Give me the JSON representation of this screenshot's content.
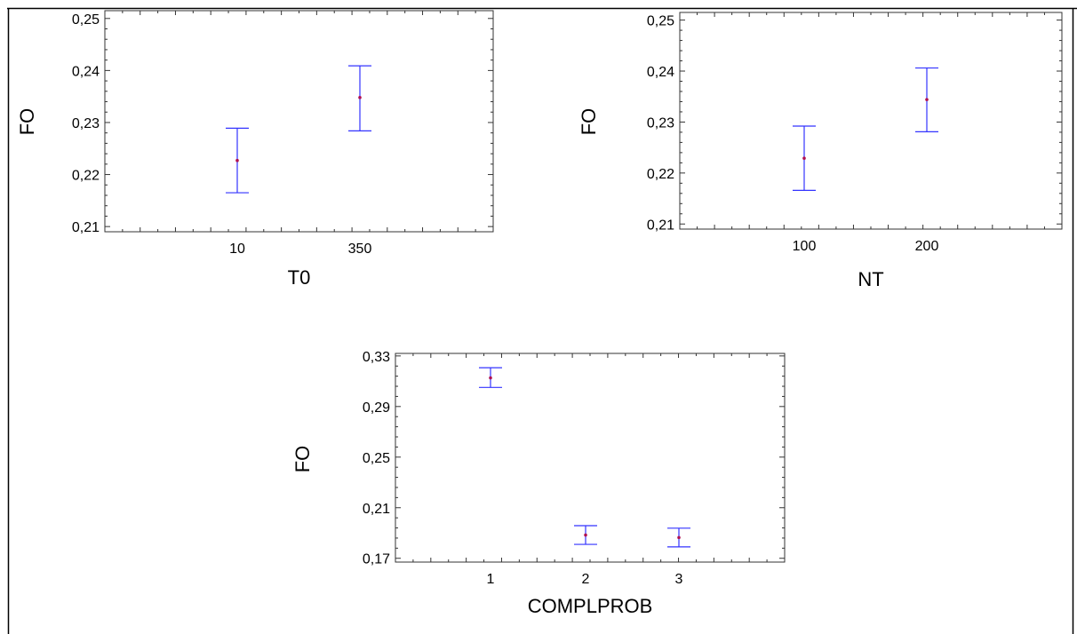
{
  "chart_data": [
    {
      "type": "scatter",
      "title": "",
      "xlabel": "T0",
      "ylabel": "FO",
      "categories": [
        "10",
        "350"
      ],
      "ylim": [
        0.209,
        0.2515
      ],
      "yticks": [
        "0,21",
        "0,22",
        "0,23",
        "0,24",
        "0,25"
      ],
      "ytick_values": [
        0.21,
        0.22,
        0.23,
        0.24,
        0.25
      ],
      "series": [
        {
          "values": [
            0.2227,
            0.2348
          ],
          "lower": [
            0.2165,
            0.2284
          ],
          "upper": [
            0.2289,
            0.2409
          ]
        }
      ]
    },
    {
      "type": "scatter",
      "title": "",
      "xlabel": "NT",
      "ylabel": "FO",
      "categories": [
        "100",
        "200"
      ],
      "ylim": [
        0.209,
        0.2515
      ],
      "yticks": [
        "0,21",
        "0,22",
        "0,23",
        "0,24",
        "0,25"
      ],
      "ytick_values": [
        0.21,
        0.22,
        0.23,
        0.24,
        0.25
      ],
      "series": [
        {
          "values": [
            0.2229,
            0.2344
          ],
          "lower": [
            0.2166,
            0.2281
          ],
          "upper": [
            0.2292,
            0.2406
          ]
        }
      ]
    },
    {
      "type": "scatter",
      "title": "",
      "xlabel": "COMPLPROB",
      "ylabel": "FO",
      "categories": [
        "1",
        "2",
        "3"
      ],
      "ylim": [
        0.167,
        0.332
      ],
      "yticks": [
        "0,17",
        "0,21",
        "0,25",
        "0,29",
        "0,33"
      ],
      "ytick_values": [
        0.17,
        0.21,
        0.25,
        0.29,
        0.33
      ],
      "series": [
        {
          "values": [
            0.3127,
            0.1884,
            0.1864
          ],
          "lower": [
            0.3051,
            0.181,
            0.179
          ],
          "upper": [
            0.3207,
            0.1958,
            0.1938
          ]
        }
      ]
    }
  ]
}
